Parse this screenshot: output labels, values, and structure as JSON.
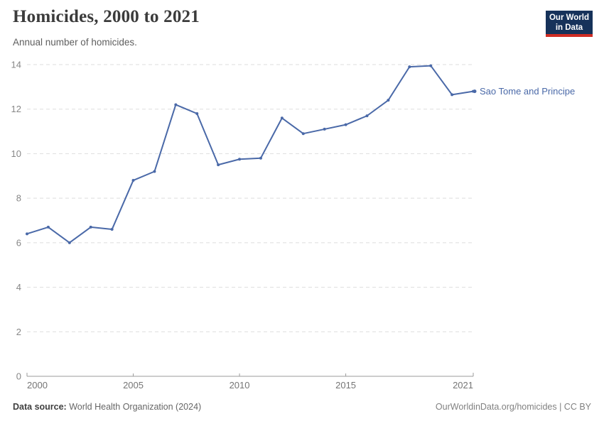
{
  "header": {
    "title": "Homicides, 2000 to 2021",
    "subtitle": "Annual number of homicides.",
    "logo": {
      "line1": "Our World",
      "line2": "in Data"
    }
  },
  "footer": {
    "source_prefix": "Data source:",
    "source_text": " World Health Organization (2024)",
    "credit_text": "OurWorldinData.org/homicides | CC BY"
  },
  "colors": {
    "line": "#4a69a8",
    "grid": "#dedede",
    "axis": "#9b9b9b",
    "y_tick_label": "#878787",
    "x_tick_label": "#757575",
    "title": "#3b3b3b",
    "subtitle": "#5e5e5e",
    "logo_bg": "#16325a",
    "logo_accent": "#cf2d24"
  },
  "chart_data": {
    "type": "line",
    "title": "Homicides, 2000 to 2021",
    "subtitle": "Annual number of homicides.",
    "xlabel": "",
    "ylabel": "",
    "xlim": [
      2000,
      2021
    ],
    "ylim": [
      0,
      14
    ],
    "xticks": [
      2000,
      2005,
      2010,
      2015,
      2021
    ],
    "yticks": [
      0,
      2,
      4,
      6,
      8,
      10,
      12,
      14
    ],
    "grid": "horizontal-dashed",
    "legend": "end-of-line-label",
    "series": [
      {
        "name": "Sao Tome and Principe",
        "color": "#4a69a8",
        "x": [
          2000,
          2001,
          2002,
          2003,
          2004,
          2005,
          2006,
          2007,
          2008,
          2009,
          2010,
          2011,
          2012,
          2013,
          2014,
          2015,
          2016,
          2017,
          2018,
          2019,
          2020,
          2021
        ],
        "values": [
          6.4,
          6.7,
          6.0,
          6.7,
          6.6,
          8.8,
          9.2,
          12.2,
          11.8,
          9.5,
          9.75,
          9.8,
          11.6,
          10.9,
          11.1,
          11.3,
          11.7,
          12.4,
          13.9,
          13.95,
          12.65,
          12.8
        ]
      }
    ]
  }
}
